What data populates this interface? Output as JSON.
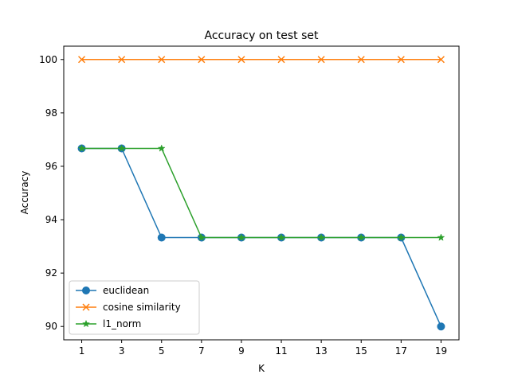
{
  "chart_data": {
    "type": "line",
    "title": "Accuracy on test set",
    "xlabel": "K",
    "ylabel": "Accuracy",
    "x": [
      1,
      3,
      5,
      7,
      9,
      11,
      13,
      15,
      17,
      19
    ],
    "x_ticks": [
      "1",
      "3",
      "5",
      "7",
      "9",
      "11",
      "13",
      "15",
      "17",
      "19"
    ],
    "y_ticks": [
      "90",
      "92",
      "94",
      "96",
      "98",
      "100"
    ],
    "xlim": [
      0.1,
      19.9
    ],
    "ylim": [
      89.5,
      100.5
    ],
    "grid": false,
    "legend_position": "lower-left",
    "series": [
      {
        "name": "euclidean",
        "color": "#1f77b4",
        "marker": "circle",
        "values": [
          96.67,
          96.67,
          93.33,
          93.33,
          93.33,
          93.33,
          93.33,
          93.33,
          93.33,
          90.0
        ]
      },
      {
        "name": "cosine similarity",
        "color": "#ff7f0e",
        "marker": "x",
        "values": [
          100,
          100,
          100,
          100,
          100,
          100,
          100,
          100,
          100,
          100
        ]
      },
      {
        "name": "l1_norm",
        "color": "#2ca02c",
        "marker": "star",
        "values": [
          96.67,
          96.67,
          96.67,
          93.33,
          93.33,
          93.33,
          93.33,
          93.33,
          93.33,
          93.33
        ]
      }
    ]
  }
}
